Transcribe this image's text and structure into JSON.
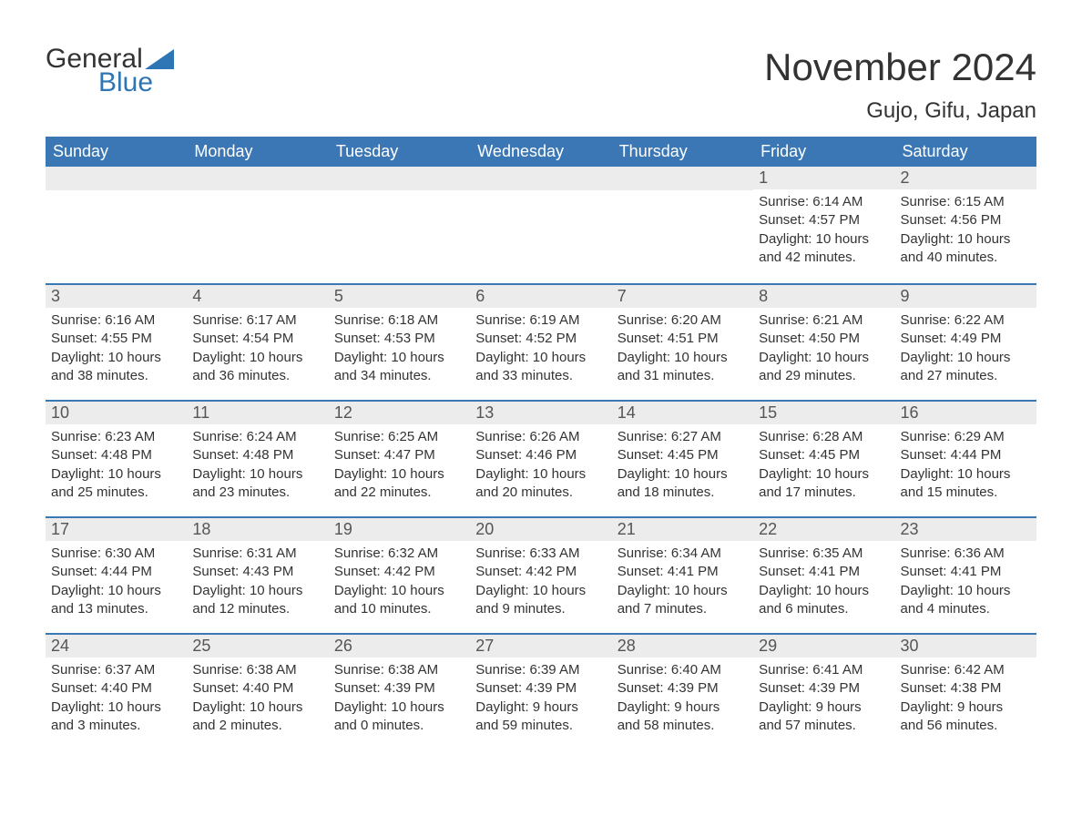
{
  "brand": {
    "top": "General",
    "bottom": "Blue",
    "shape_color": "#2e75b6"
  },
  "title": "November 2024",
  "location": "Gujo, Gifu, Japan",
  "colors": {
    "header_bg": "#3b77b5",
    "header_text": "#ffffff",
    "day_bar_bg": "#ececec",
    "body_text": "#333333",
    "week_border": "#3b77b5"
  },
  "layout": {
    "weekday_fontsize": 18,
    "daynum_fontsize": 18,
    "body_fontsize": 15,
    "title_fontsize": 42,
    "location_fontsize": 24
  },
  "weekdays": [
    "Sunday",
    "Monday",
    "Tuesday",
    "Wednesday",
    "Thursday",
    "Friday",
    "Saturday"
  ],
  "weeks": [
    [
      null,
      null,
      null,
      null,
      null,
      {
        "n": "1",
        "sr": "Sunrise: 6:14 AM",
        "ss": "Sunset: 4:57 PM",
        "d1": "Daylight: 10 hours",
        "d2": "and 42 minutes."
      },
      {
        "n": "2",
        "sr": "Sunrise: 6:15 AM",
        "ss": "Sunset: 4:56 PM",
        "d1": "Daylight: 10 hours",
        "d2": "and 40 minutes."
      }
    ],
    [
      {
        "n": "3",
        "sr": "Sunrise: 6:16 AM",
        "ss": "Sunset: 4:55 PM",
        "d1": "Daylight: 10 hours",
        "d2": "and 38 minutes."
      },
      {
        "n": "4",
        "sr": "Sunrise: 6:17 AM",
        "ss": "Sunset: 4:54 PM",
        "d1": "Daylight: 10 hours",
        "d2": "and 36 minutes."
      },
      {
        "n": "5",
        "sr": "Sunrise: 6:18 AM",
        "ss": "Sunset: 4:53 PM",
        "d1": "Daylight: 10 hours",
        "d2": "and 34 minutes."
      },
      {
        "n": "6",
        "sr": "Sunrise: 6:19 AM",
        "ss": "Sunset: 4:52 PM",
        "d1": "Daylight: 10 hours",
        "d2": "and 33 minutes."
      },
      {
        "n": "7",
        "sr": "Sunrise: 6:20 AM",
        "ss": "Sunset: 4:51 PM",
        "d1": "Daylight: 10 hours",
        "d2": "and 31 minutes."
      },
      {
        "n": "8",
        "sr": "Sunrise: 6:21 AM",
        "ss": "Sunset: 4:50 PM",
        "d1": "Daylight: 10 hours",
        "d2": "and 29 minutes."
      },
      {
        "n": "9",
        "sr": "Sunrise: 6:22 AM",
        "ss": "Sunset: 4:49 PM",
        "d1": "Daylight: 10 hours",
        "d2": "and 27 minutes."
      }
    ],
    [
      {
        "n": "10",
        "sr": "Sunrise: 6:23 AM",
        "ss": "Sunset: 4:48 PM",
        "d1": "Daylight: 10 hours",
        "d2": "and 25 minutes."
      },
      {
        "n": "11",
        "sr": "Sunrise: 6:24 AM",
        "ss": "Sunset: 4:48 PM",
        "d1": "Daylight: 10 hours",
        "d2": "and 23 minutes."
      },
      {
        "n": "12",
        "sr": "Sunrise: 6:25 AM",
        "ss": "Sunset: 4:47 PM",
        "d1": "Daylight: 10 hours",
        "d2": "and 22 minutes."
      },
      {
        "n": "13",
        "sr": "Sunrise: 6:26 AM",
        "ss": "Sunset: 4:46 PM",
        "d1": "Daylight: 10 hours",
        "d2": "and 20 minutes."
      },
      {
        "n": "14",
        "sr": "Sunrise: 6:27 AM",
        "ss": "Sunset: 4:45 PM",
        "d1": "Daylight: 10 hours",
        "d2": "and 18 minutes."
      },
      {
        "n": "15",
        "sr": "Sunrise: 6:28 AM",
        "ss": "Sunset: 4:45 PM",
        "d1": "Daylight: 10 hours",
        "d2": "and 17 minutes."
      },
      {
        "n": "16",
        "sr": "Sunrise: 6:29 AM",
        "ss": "Sunset: 4:44 PM",
        "d1": "Daylight: 10 hours",
        "d2": "and 15 minutes."
      }
    ],
    [
      {
        "n": "17",
        "sr": "Sunrise: 6:30 AM",
        "ss": "Sunset: 4:44 PM",
        "d1": "Daylight: 10 hours",
        "d2": "and 13 minutes."
      },
      {
        "n": "18",
        "sr": "Sunrise: 6:31 AM",
        "ss": "Sunset: 4:43 PM",
        "d1": "Daylight: 10 hours",
        "d2": "and 12 minutes."
      },
      {
        "n": "19",
        "sr": "Sunrise: 6:32 AM",
        "ss": "Sunset: 4:42 PM",
        "d1": "Daylight: 10 hours",
        "d2": "and 10 minutes."
      },
      {
        "n": "20",
        "sr": "Sunrise: 6:33 AM",
        "ss": "Sunset: 4:42 PM",
        "d1": "Daylight: 10 hours",
        "d2": "and 9 minutes."
      },
      {
        "n": "21",
        "sr": "Sunrise: 6:34 AM",
        "ss": "Sunset: 4:41 PM",
        "d1": "Daylight: 10 hours",
        "d2": "and 7 minutes."
      },
      {
        "n": "22",
        "sr": "Sunrise: 6:35 AM",
        "ss": "Sunset: 4:41 PM",
        "d1": "Daylight: 10 hours",
        "d2": "and 6 minutes."
      },
      {
        "n": "23",
        "sr": "Sunrise: 6:36 AM",
        "ss": "Sunset: 4:41 PM",
        "d1": "Daylight: 10 hours",
        "d2": "and 4 minutes."
      }
    ],
    [
      {
        "n": "24",
        "sr": "Sunrise: 6:37 AM",
        "ss": "Sunset: 4:40 PM",
        "d1": "Daylight: 10 hours",
        "d2": "and 3 minutes."
      },
      {
        "n": "25",
        "sr": "Sunrise: 6:38 AM",
        "ss": "Sunset: 4:40 PM",
        "d1": "Daylight: 10 hours",
        "d2": "and 2 minutes."
      },
      {
        "n": "26",
        "sr": "Sunrise: 6:38 AM",
        "ss": "Sunset: 4:39 PM",
        "d1": "Daylight: 10 hours",
        "d2": "and 0 minutes."
      },
      {
        "n": "27",
        "sr": "Sunrise: 6:39 AM",
        "ss": "Sunset: 4:39 PM",
        "d1": "Daylight: 9 hours",
        "d2": "and 59 minutes."
      },
      {
        "n": "28",
        "sr": "Sunrise: 6:40 AM",
        "ss": "Sunset: 4:39 PM",
        "d1": "Daylight: 9 hours",
        "d2": "and 58 minutes."
      },
      {
        "n": "29",
        "sr": "Sunrise: 6:41 AM",
        "ss": "Sunset: 4:39 PM",
        "d1": "Daylight: 9 hours",
        "d2": "and 57 minutes."
      },
      {
        "n": "30",
        "sr": "Sunrise: 6:42 AM",
        "ss": "Sunset: 4:38 PM",
        "d1": "Daylight: 9 hours",
        "d2": "and 56 minutes."
      }
    ]
  ]
}
